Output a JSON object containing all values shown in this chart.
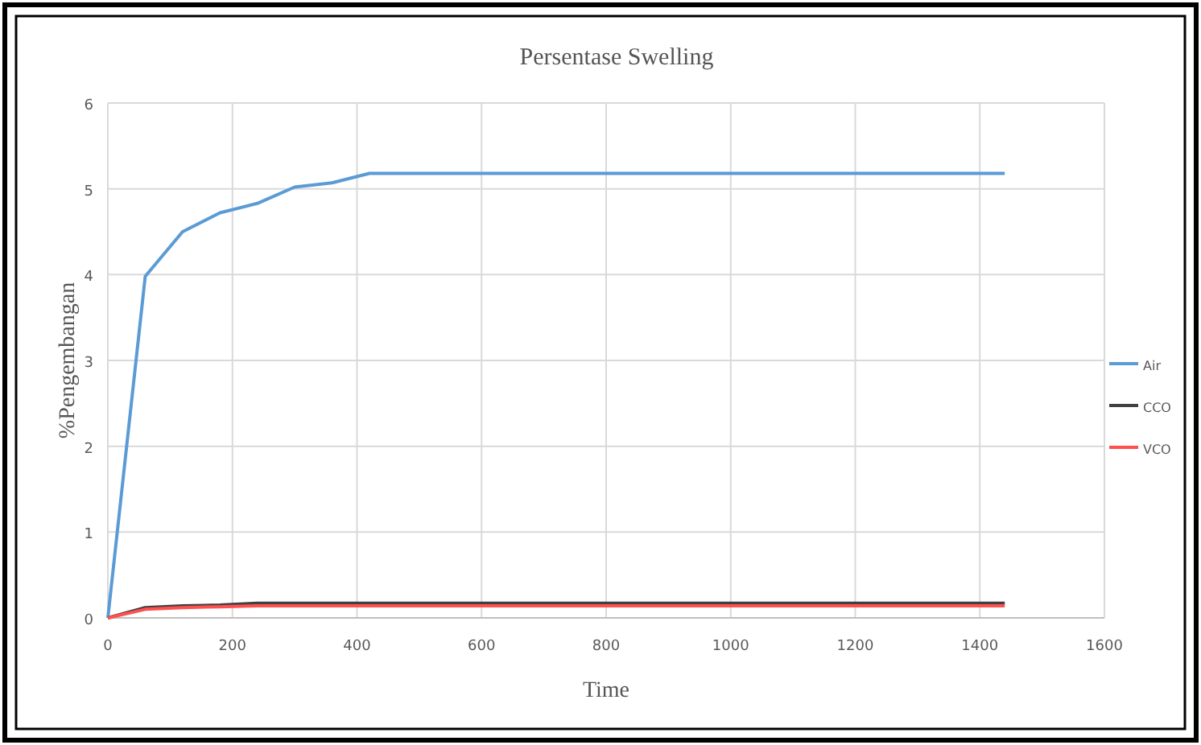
{
  "chart_data": {
    "type": "line",
    "title": "Persentase Swelling",
    "xlabel": "Time",
    "ylabel": "%Pengembangan",
    "xlim": [
      0,
      1600
    ],
    "xticks": [
      0,
      200,
      400,
      600,
      800,
      1000,
      1200,
      1400,
      1600
    ],
    "ylim": [
      0,
      6
    ],
    "yticks": [
      0,
      1,
      2,
      3,
      4,
      5,
      6
    ],
    "grid": true,
    "legend": "right",
    "marker": "none",
    "line_style": "solid",
    "series": [
      {
        "name": "Air",
        "color": "#5b9bd5",
        "x": [
          0,
          60,
          120,
          180,
          240,
          300,
          360,
          420,
          1440
        ],
        "values": [
          0,
          3.98,
          4.5,
          4.72,
          4.83,
          5.02,
          5.07,
          5.18,
          5.18
        ]
      },
      {
        "name": "CCO",
        "color": "#404040",
        "x": [
          0,
          60,
          120,
          180,
          240,
          1440
        ],
        "values": [
          0,
          0.12,
          0.14,
          0.15,
          0.17,
          0.17
        ]
      },
      {
        "name": "VCO",
        "color": "#ff5050",
        "x": [
          0,
          60,
          120,
          180,
          240,
          1440
        ],
        "values": [
          0,
          0.1,
          0.12,
          0.13,
          0.14,
          0.14
        ]
      }
    ]
  }
}
